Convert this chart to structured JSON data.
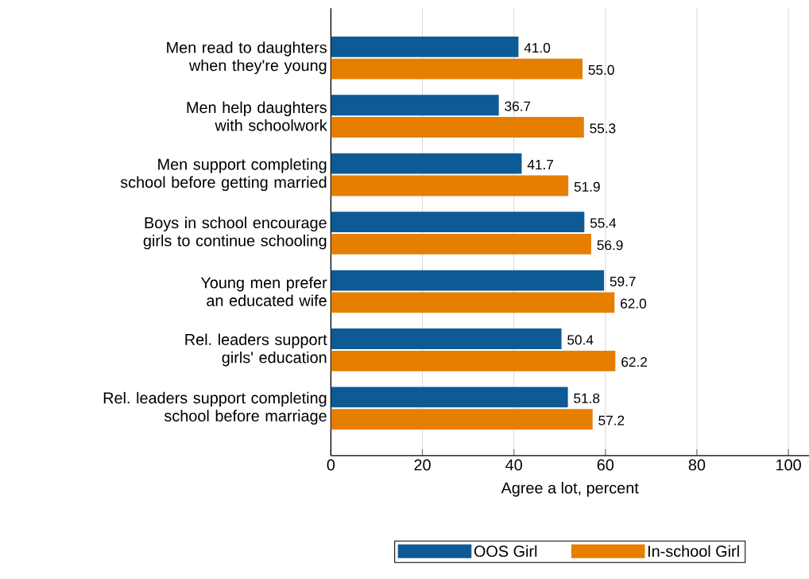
{
  "chart_data": {
    "type": "bar",
    "orientation": "horizontal",
    "xlabel": "Agree a lot, percent",
    "categories": [
      "Men read to daughters when they're young",
      "Men help daughters with schoolwork",
      "Men support completing school before getting married",
      "Boys in school encourage girls to continue schooling",
      "Young men prefer an educated wife",
      "Rel. leaders support girls' education",
      "Rel. leaders support completing school before marriage"
    ],
    "series": [
      {
        "name": "OOS Girl",
        "color": "#0e5a94",
        "values": [
          41.0,
          36.7,
          41.7,
          55.4,
          59.7,
          50.4,
          51.8
        ],
        "value_labels": [
          "41.0",
          "36.7",
          "41.7",
          "55.4",
          "59.7",
          "50.4",
          "51.8"
        ]
      },
      {
        "name": "In-school Girl",
        "color": "#e67e00",
        "values": [
          55.0,
          55.3,
          51.9,
          56.9,
          62.0,
          62.2,
          57.2
        ],
        "value_labels": [
          "55.0",
          "55.3",
          "51.9",
          "56.9",
          "62.0",
          "62.2",
          "57.2"
        ]
      }
    ],
    "xlim": [
      0,
      104.5
    ],
    "xticks": [
      0,
      20,
      40,
      60,
      80,
      100
    ],
    "grid": "x",
    "legend": "bottom"
  }
}
